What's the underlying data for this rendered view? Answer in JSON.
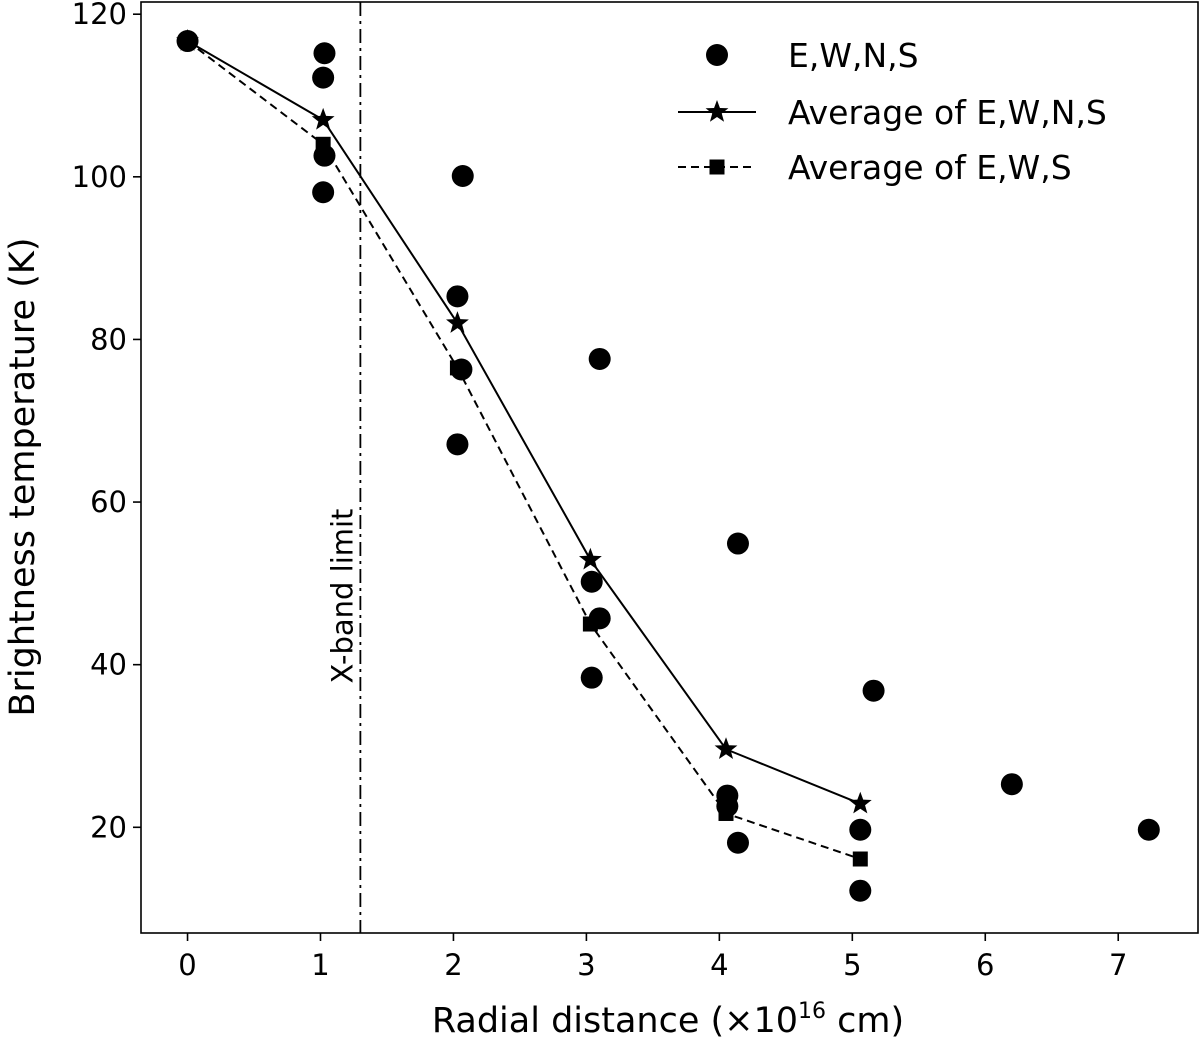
{
  "chart_data": {
    "type": "scatter",
    "title": "",
    "xlabel": "Radial distance (×10",
    "xlabel_exponent": "16",
    "xlabel_suffix": " cm)",
    "ylabel": "Brightness temperature (K)",
    "xlim": [
      -0.35,
      7.6
    ],
    "ylim": [
      7,
      121.5
    ],
    "x_ticks": [
      0,
      1,
      2,
      3,
      4,
      5,
      6,
      7
    ],
    "x_tick_labels": [
      "0",
      "1",
      "2",
      "3",
      "4",
      "5",
      "6",
      "7"
    ],
    "y_ticks": [
      20,
      40,
      60,
      80,
      100,
      120
    ],
    "y_tick_labels": [
      "20",
      "40",
      "60",
      "80",
      "100",
      "120"
    ],
    "grid": false,
    "legend_position": "top-right",
    "series": [
      {
        "name": "E,W,N,S",
        "style": "markers",
        "marker": "circle",
        "color": "#000000",
        "points": [
          {
            "x": 0.0,
            "y": 116.7
          },
          {
            "x": 1.03,
            "y": 115.2
          },
          {
            "x": 1.02,
            "y": 112.2
          },
          {
            "x": 1.03,
            "y": 102.6
          },
          {
            "x": 1.02,
            "y": 98.1
          },
          {
            "x": 2.07,
            "y": 100.1
          },
          {
            "x": 2.03,
            "y": 85.3
          },
          {
            "x": 2.06,
            "y": 76.3
          },
          {
            "x": 2.03,
            "y": 67.1
          },
          {
            "x": 3.1,
            "y": 77.6
          },
          {
            "x": 3.04,
            "y": 50.2
          },
          {
            "x": 3.1,
            "y": 45.7
          },
          {
            "x": 3.04,
            "y": 38.4
          },
          {
            "x": 4.14,
            "y": 54.9
          },
          {
            "x": 4.06,
            "y": 23.9
          },
          {
            "x": 4.06,
            "y": 22.6
          },
          {
            "x": 4.14,
            "y": 18.1
          },
          {
            "x": 5.16,
            "y": 36.8
          },
          {
            "x": 5.06,
            "y": 19.7
          },
          {
            "x": 5.06,
            "y": 12.2
          },
          {
            "x": 6.2,
            "y": 25.3
          },
          {
            "x": 7.23,
            "y": 19.7
          }
        ]
      },
      {
        "name": "Average of E,W,N,S",
        "style": "solid-line",
        "marker": "star",
        "color": "#000000",
        "points": [
          {
            "x": 0.0,
            "y": 116.7
          },
          {
            "x": 1.02,
            "y": 107.0
          },
          {
            "x": 2.03,
            "y": 82.0
          },
          {
            "x": 3.03,
            "y": 52.9
          },
          {
            "x": 4.05,
            "y": 29.6
          },
          {
            "x": 5.06,
            "y": 22.9
          }
        ]
      },
      {
        "name": "Average of E,W,S",
        "style": "dashed-line",
        "marker": "square",
        "color": "#000000",
        "points": [
          {
            "x": 0.0,
            "y": 116.7
          },
          {
            "x": 1.02,
            "y": 104.0
          },
          {
            "x": 2.03,
            "y": 76.5
          },
          {
            "x": 3.03,
            "y": 45.0
          },
          {
            "x": 4.05,
            "y": 21.7
          },
          {
            "x": 5.06,
            "y": 16.1
          }
        ]
      }
    ],
    "annotations": [
      {
        "type": "vertical-line",
        "style": "dash-dot",
        "x": 1.3,
        "label": "X-band limit"
      }
    ]
  }
}
